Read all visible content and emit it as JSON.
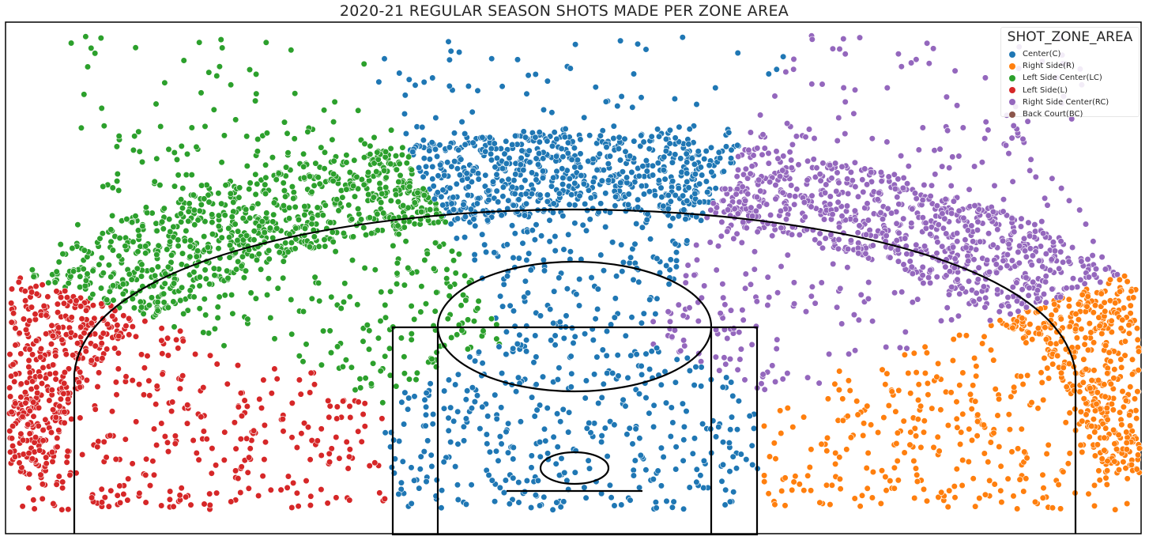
{
  "chart_data": {
    "type": "scatter",
    "title": "2020-21 REGULAR SEASON SHOTS MADE PER ZONE AREA",
    "xlabel": "",
    "ylabel": "",
    "xlim": [
      -250,
      250
    ],
    "ylim": [
      -52,
      422
    ],
    "grid": false,
    "legend": {
      "title": "SHOT_ZONE_AREA",
      "placement": "top-right"
    },
    "series": [
      {
        "name": "Center(C)",
        "color": "#1f77b4"
      },
      {
        "name": "Right Side(R)",
        "color": "#ff7f0e"
      },
      {
        "name": "Left Side Center(LC)",
        "color": "#2ca02c"
      },
      {
        "name": "Left Side(L)",
        "color": "#d62728"
      },
      {
        "name": "Right Side Center(RC)",
        "color": "#9467bd"
      },
      {
        "name": "Back Court(BC)",
        "color": "#8c564b"
      }
    ]
  }
}
